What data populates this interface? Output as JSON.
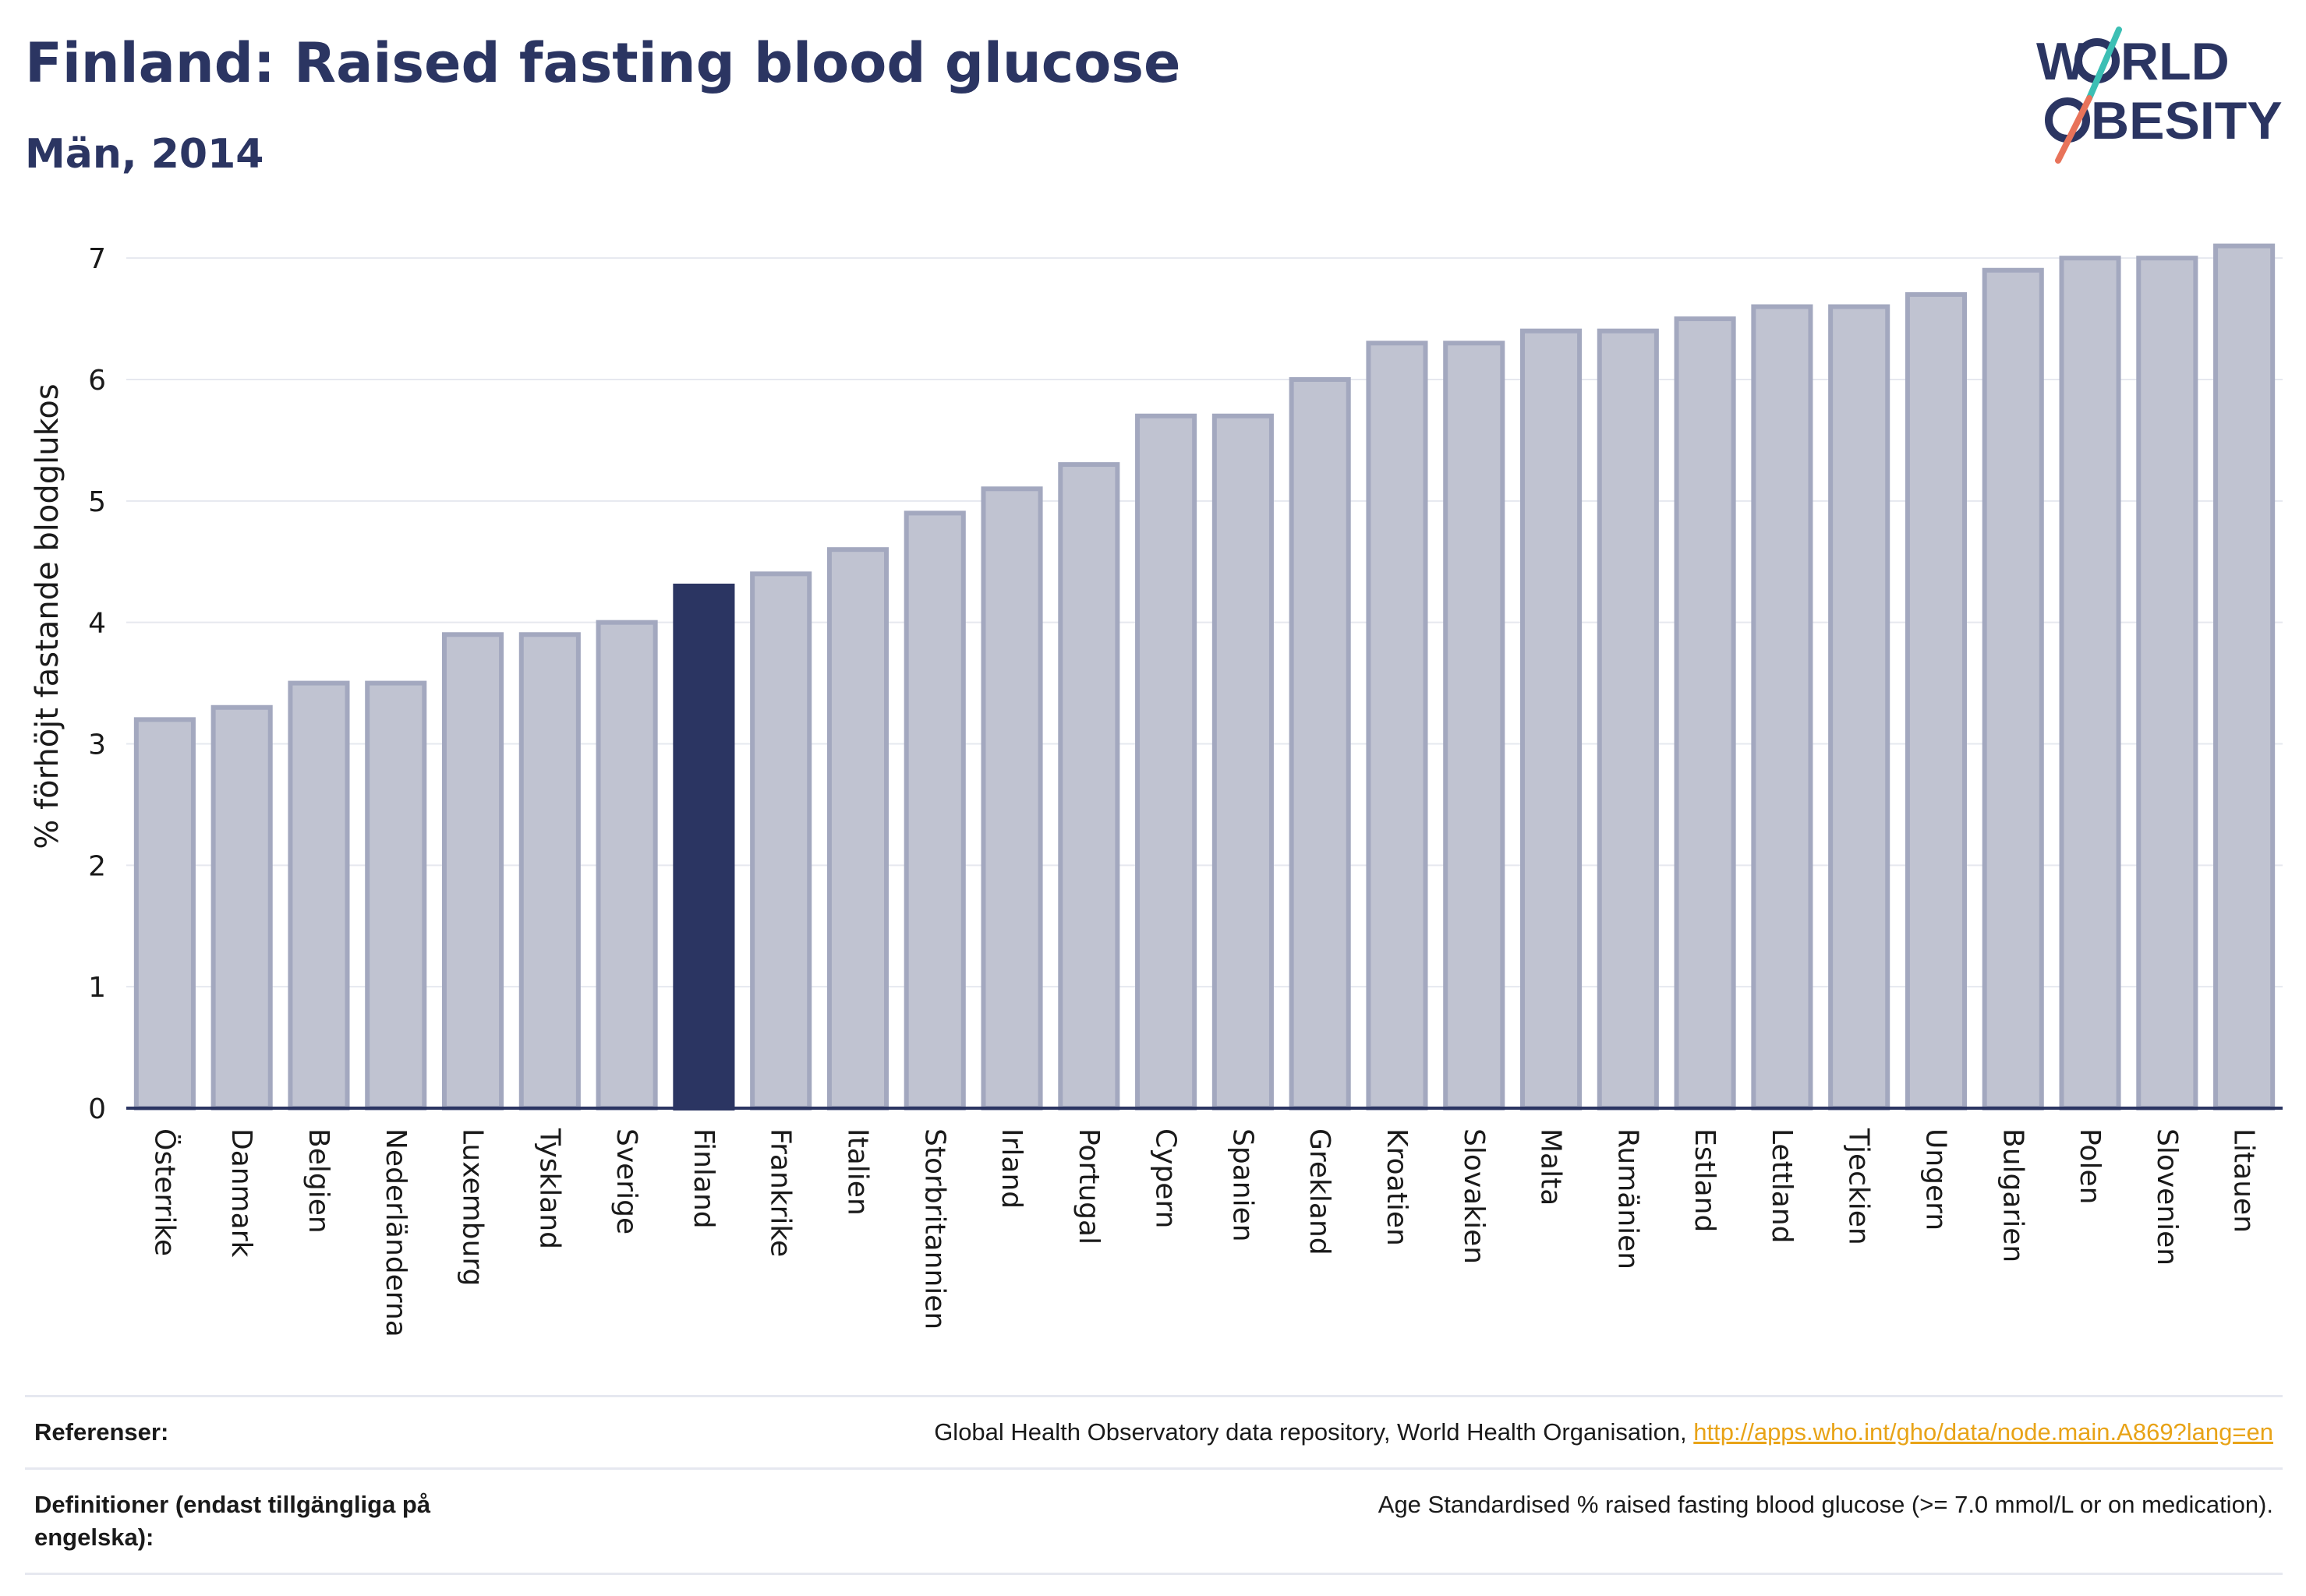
{
  "header": {
    "title": "Finland: Raised fasting blood glucose",
    "subtitle": "Män, 2014"
  },
  "logo": {
    "line1_left": "W",
    "line1_right": "RLD",
    "line2": "BESITY",
    "colors": {
      "text": "#2b3562",
      "slash_teal": "#3cbfb4",
      "slash_coral": "#e8735a"
    }
  },
  "colors": {
    "bar_default": "#c0c3d1",
    "bar_default_stroke": "#a3a8bf",
    "bar_highlight": "#2b3562",
    "axis": "#2b3562",
    "grid": "#e6e8ef"
  },
  "chart_data": {
    "type": "bar",
    "ylabel": "% förhöjt fastande blodglukos",
    "ylim": [
      0,
      7.2
    ],
    "yticks": [
      0,
      1,
      2,
      3,
      4,
      5,
      6,
      7
    ],
    "grid": true,
    "highlight": "Finland",
    "categories": [
      "Österrike",
      "Danmark",
      "Belgien",
      "Nederländerna",
      "Luxemburg",
      "Tyskland",
      "Sverige",
      "Finland",
      "Frankrike",
      "Italien",
      "Storbritannien",
      "Irland",
      "Portugal",
      "Cypern",
      "Spanien",
      "Grekland",
      "Kroatien",
      "Slovakien",
      "Malta",
      "Rumänien",
      "Estland",
      "Lettland",
      "Tjeckien",
      "Ungern",
      "Bulgarien",
      "Polen",
      "Slovenien",
      "Litauen"
    ],
    "values": [
      3.2,
      3.3,
      3.5,
      3.5,
      3.9,
      3.9,
      4.0,
      4.3,
      4.4,
      4.6,
      4.9,
      5.1,
      5.3,
      5.7,
      5.7,
      6.0,
      6.3,
      6.3,
      6.4,
      6.4,
      6.5,
      6.6,
      6.6,
      6.7,
      6.9,
      7.0,
      7.0,
      7.1
    ]
  },
  "references": {
    "ref_label": "Referenser:",
    "ref_text": "Global Health Observatory data repository, World Health Organisation, ",
    "ref_link": "http://apps.who.int/gho/data/node.main.A869?lang=en",
    "def_label": "Definitioner (endast tillgängliga på engelska):",
    "def_text": "Age Standardised % raised fasting blood glucose (>= 7.0 mmol/L or on medication)."
  }
}
